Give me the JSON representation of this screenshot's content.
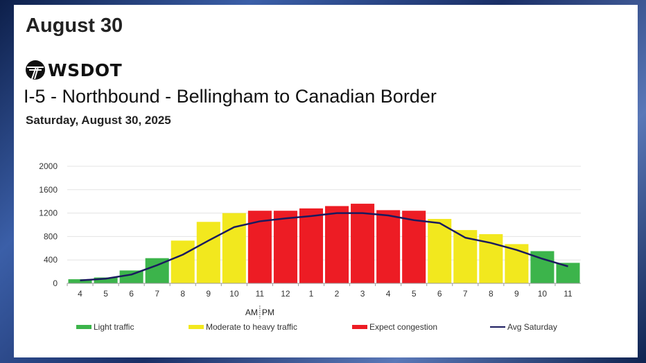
{
  "headline": "August 30",
  "logo_text": "WSDOT",
  "chart_data": {
    "type": "bar",
    "title": "I-5 - Northbound - Bellingham to Canadian Border",
    "subtitle": "Saturday, August 30, 2025",
    "categories": [
      "4",
      "5",
      "6",
      "7",
      "8",
      "9",
      "10",
      "11",
      "12",
      "1",
      "2",
      "3",
      "4",
      "5",
      "6",
      "7",
      "8",
      "9",
      "10",
      "11"
    ],
    "values": [
      70,
      100,
      220,
      430,
      730,
      1050,
      1200,
      1240,
      1240,
      1280,
      1320,
      1360,
      1250,
      1240,
      1100,
      910,
      840,
      670,
      550,
      350
    ],
    "levels": [
      "light",
      "light",
      "light",
      "light",
      "moderate",
      "moderate",
      "moderate",
      "congestion",
      "congestion",
      "congestion",
      "congestion",
      "congestion",
      "congestion",
      "congestion",
      "moderate",
      "moderate",
      "moderate",
      "moderate",
      "light",
      "light"
    ],
    "series": [
      {
        "name": "Avg Saturday",
        "type": "line",
        "values": [
          50,
          80,
          150,
          310,
          490,
          730,
          960,
          1060,
          1110,
          1150,
          1200,
          1200,
          1160,
          1080,
          1030,
          780,
          690,
          570,
          420,
          290
        ]
      }
    ],
    "ylim": [
      0,
      2000
    ],
    "yticks": [
      "0",
      "400",
      "800",
      "1200",
      "1600",
      "2000"
    ],
    "am_label": "AM",
    "pm_label": "PM",
    "grid": true,
    "legend": [
      {
        "key": "light",
        "label": "Light traffic",
        "color": "#3cb44b"
      },
      {
        "key": "moderate",
        "label": "Moderate to heavy traffic",
        "color": "#f2e81e"
      },
      {
        "key": "congestion",
        "label": "Expect congestion",
        "color": "#ed1c24"
      },
      {
        "key": "avg",
        "label": "Avg Saturday",
        "color": "#1a1a5e"
      }
    ],
    "legend_placement": "bottom"
  }
}
